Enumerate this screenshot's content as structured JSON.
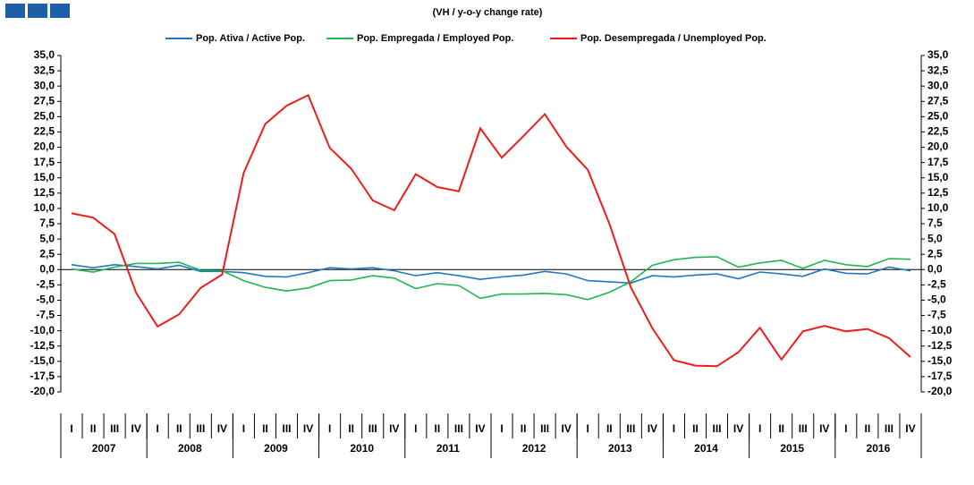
{
  "chart_data": {
    "type": "line",
    "subtitle": "(VH / y-o-y change rate)",
    "categories": [
      "I",
      "II",
      "III",
      "IV",
      "I",
      "II",
      "III",
      "IV",
      "I",
      "II",
      "III",
      "IV",
      "I",
      "II",
      "III",
      "IV",
      "I",
      "II",
      "III",
      "IV",
      "I",
      "II",
      "III",
      "IV",
      "I",
      "II",
      "III",
      "IV",
      "I",
      "II",
      "III",
      "IV",
      "I",
      "II",
      "III",
      "IV",
      "I",
      "II",
      "III",
      "IV"
    ],
    "years": [
      "2007",
      "2008",
      "2009",
      "2010",
      "2011",
      "2012",
      "2013",
      "2014",
      "2015",
      "2016"
    ],
    "series": [
      {
        "name": "Pop. Ativa / Active Pop.",
        "color": "#1f77c4",
        "values": [
          0.8,
          0.3,
          0.8,
          0.5,
          0.1,
          0.7,
          -0.3,
          -0.3,
          -0.5,
          -1.1,
          -1.2,
          -0.5,
          0.3,
          0.1,
          0.3,
          -0.2,
          -1.0,
          -0.5,
          -1.0,
          -1.6,
          -1.2,
          -0.9,
          -0.3,
          -0.7,
          -1.8,
          -2.0,
          -2.2,
          -1.0,
          -1.2,
          -0.9,
          -0.7,
          -1.5,
          -0.4,
          -0.7,
          -1.1,
          0.1,
          -0.6,
          -0.7,
          0.4,
          -0.2
        ]
      },
      {
        "name": "Pop. Empregada / Employed Pop.",
        "color": "#22b455",
        "values": [
          0.1,
          -0.4,
          0.4,
          1.0,
          1.0,
          1.2,
          -0.1,
          -0.2,
          -1.8,
          -2.9,
          -3.5,
          -3.0,
          -1.8,
          -1.7,
          -1.0,
          -1.4,
          -3.1,
          -2.3,
          -2.6,
          -4.7,
          -4.0,
          -4.0,
          -3.9,
          -4.1,
          -4.9,
          -3.7,
          -2.0,
          0.7,
          1.6,
          2.0,
          2.1,
          0.4,
          1.1,
          1.5,
          0.2,
          1.5,
          0.8,
          0.5,
          1.8,
          1.7
        ]
      },
      {
        "name": "Pop. Desempregada / Unemployed Pop.",
        "color": "#f01c1c",
        "values": [
          9.2,
          8.5,
          5.8,
          -3.8,
          -9.3,
          -7.3,
          -3.0,
          -0.8,
          15.8,
          23.8,
          26.8,
          28.5,
          19.9,
          16.5,
          11.3,
          9.7,
          15.6,
          13.5,
          12.8,
          23.1,
          18.3,
          21.8,
          25.4,
          20.1,
          16.3,
          7.5,
          -2.9,
          -9.6,
          -14.8,
          -15.7,
          -15.8,
          -13.5,
          -9.5,
          -14.7,
          -10.1,
          -9.2,
          -10.1,
          -9.7,
          -11.2,
          -14.3
        ]
      }
    ],
    "ylim": [
      -20,
      35
    ],
    "yticks": [
      {
        "value": 35,
        "label": "35,0"
      },
      {
        "value": 32.5,
        "label": "32,5"
      },
      {
        "value": 30,
        "label": "30,0"
      },
      {
        "value": 27.5,
        "label": "27,5"
      },
      {
        "value": 25,
        "label": "25,0"
      },
      {
        "value": 22.5,
        "label": "22,5"
      },
      {
        "value": 20,
        "label": "20,0"
      },
      {
        "value": 17.5,
        "label": "17,5"
      },
      {
        "value": 15,
        "label": "15,0"
      },
      {
        "value": 12.5,
        "label": "12,5"
      },
      {
        "value": 10,
        "label": "10,0"
      },
      {
        "value": 7.5,
        "label": "7,5"
      },
      {
        "value": 5,
        "label": "5,0"
      },
      {
        "value": 2.5,
        "label": "2,5"
      },
      {
        "value": 0,
        "label": "0,0"
      },
      {
        "value": -2.5,
        "label": "-2,5"
      },
      {
        "value": -5,
        "label": "-5,0"
      },
      {
        "value": -7.5,
        "label": "-7,5"
      },
      {
        "value": -10,
        "label": "-10,0"
      },
      {
        "value": -12.5,
        "label": "-12,5"
      },
      {
        "value": -15,
        "label": "-15,0"
      },
      {
        "value": -17.5,
        "label": "-17,5"
      },
      {
        "value": -20,
        "label": "-20,0"
      }
    ],
    "legend": "top"
  }
}
